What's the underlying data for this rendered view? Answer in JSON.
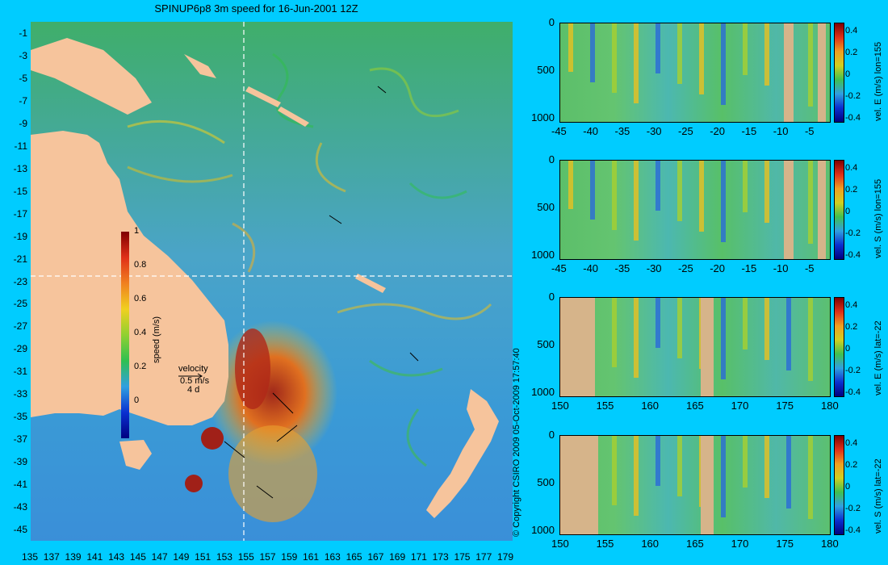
{
  "title": "SPINUP6p8 3m speed for 16-Jun-2001 12Z",
  "copyright": "© Copyright CSIRO 2009   05-Oct-2009 17:57:40",
  "map": {
    "lon_ticks": [
      "135",
      "137",
      "139",
      "141",
      "143",
      "145",
      "147",
      "149",
      "151",
      "153",
      "155",
      "157",
      "159",
      "161",
      "163",
      "165",
      "167",
      "169",
      "171",
      "173",
      "175",
      "177",
      "179"
    ],
    "lat_ticks": [
      "-1",
      "-3",
      "-5",
      "-7",
      "-9",
      "-11",
      "-13",
      "-15",
      "-17",
      "-19",
      "-21",
      "-23",
      "-25",
      "-27",
      "-29",
      "-31",
      "-33",
      "-35",
      "-37",
      "-39",
      "-41",
      "-43",
      "-45"
    ],
    "section_lon": 155,
    "section_lat": -22,
    "colorbar": {
      "ticks": [
        "1",
        "0.8",
        "0.6",
        "0.4",
        "0.2",
        "0"
      ],
      "label": "speed (m/s)"
    },
    "velocity_key": {
      "title": "velocity",
      "speed": "0.5 m/s",
      "time": "4 d"
    },
    "land_color": "#f6c49c"
  },
  "sections": [
    {
      "label": "vel. E (m/s) lon=155",
      "x_ticks": [
        "-45",
        "-40",
        "-35",
        "-30",
        "-25",
        "-20",
        "-15",
        "-10",
        "-5"
      ],
      "y_ticks": [
        "0",
        "500",
        "1000"
      ],
      "cbar_ticks": [
        "0.4",
        "0.2",
        "0",
        "-0.2",
        "-0.4"
      ]
    },
    {
      "label": "vel. S (m/s) lon=155",
      "x_ticks": [
        "-45",
        "-40",
        "-35",
        "-30",
        "-25",
        "-20",
        "-15",
        "-10",
        "-5"
      ],
      "y_ticks": [
        "0",
        "500",
        "1000"
      ],
      "cbar_ticks": [
        "0.4",
        "0.2",
        "0",
        "-0.2",
        "-0.4"
      ]
    },
    {
      "label": "vel. E (m/s) lat=-22",
      "x_ticks": [
        "150",
        "155",
        "160",
        "165",
        "170",
        "175",
        "180"
      ],
      "y_ticks": [
        "0",
        "500",
        "1000"
      ],
      "cbar_ticks": [
        "0.4",
        "0.2",
        "0",
        "-0.2",
        "-0.4"
      ]
    },
    {
      "label": "vel. S (m/s) lat=-22",
      "x_ticks": [
        "150",
        "155",
        "160",
        "165",
        "170",
        "175",
        "180"
      ],
      "y_ticks": [
        "0",
        "500",
        "1000"
      ],
      "cbar_ticks": [
        "0.4",
        "0.2",
        "0",
        "-0.2",
        "-0.4"
      ]
    }
  ]
}
